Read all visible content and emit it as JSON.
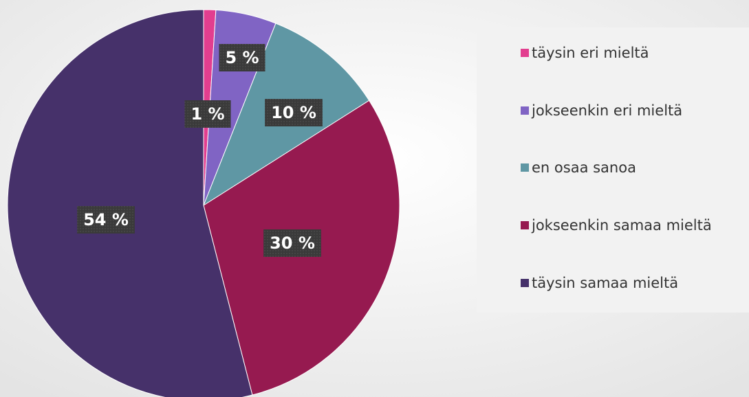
{
  "chart_data": {
    "type": "pie",
    "categories": [
      "täysin eri mieltä",
      "jokseenkin eri mieltä",
      "en osaa sanoa",
      "jokseenkin samaa mieltä",
      "täysin samaa mieltä"
    ],
    "values": [
      1,
      5,
      10,
      30,
      54
    ],
    "value_labels": [
      "1 %",
      "5 %",
      "10 %",
      "30 %",
      "54 %"
    ],
    "colors": [
      "#e23e8f",
      "#8064c4",
      "#5f97a4",
      "#961a50",
      "#46316a"
    ],
    "legend": "right"
  }
}
